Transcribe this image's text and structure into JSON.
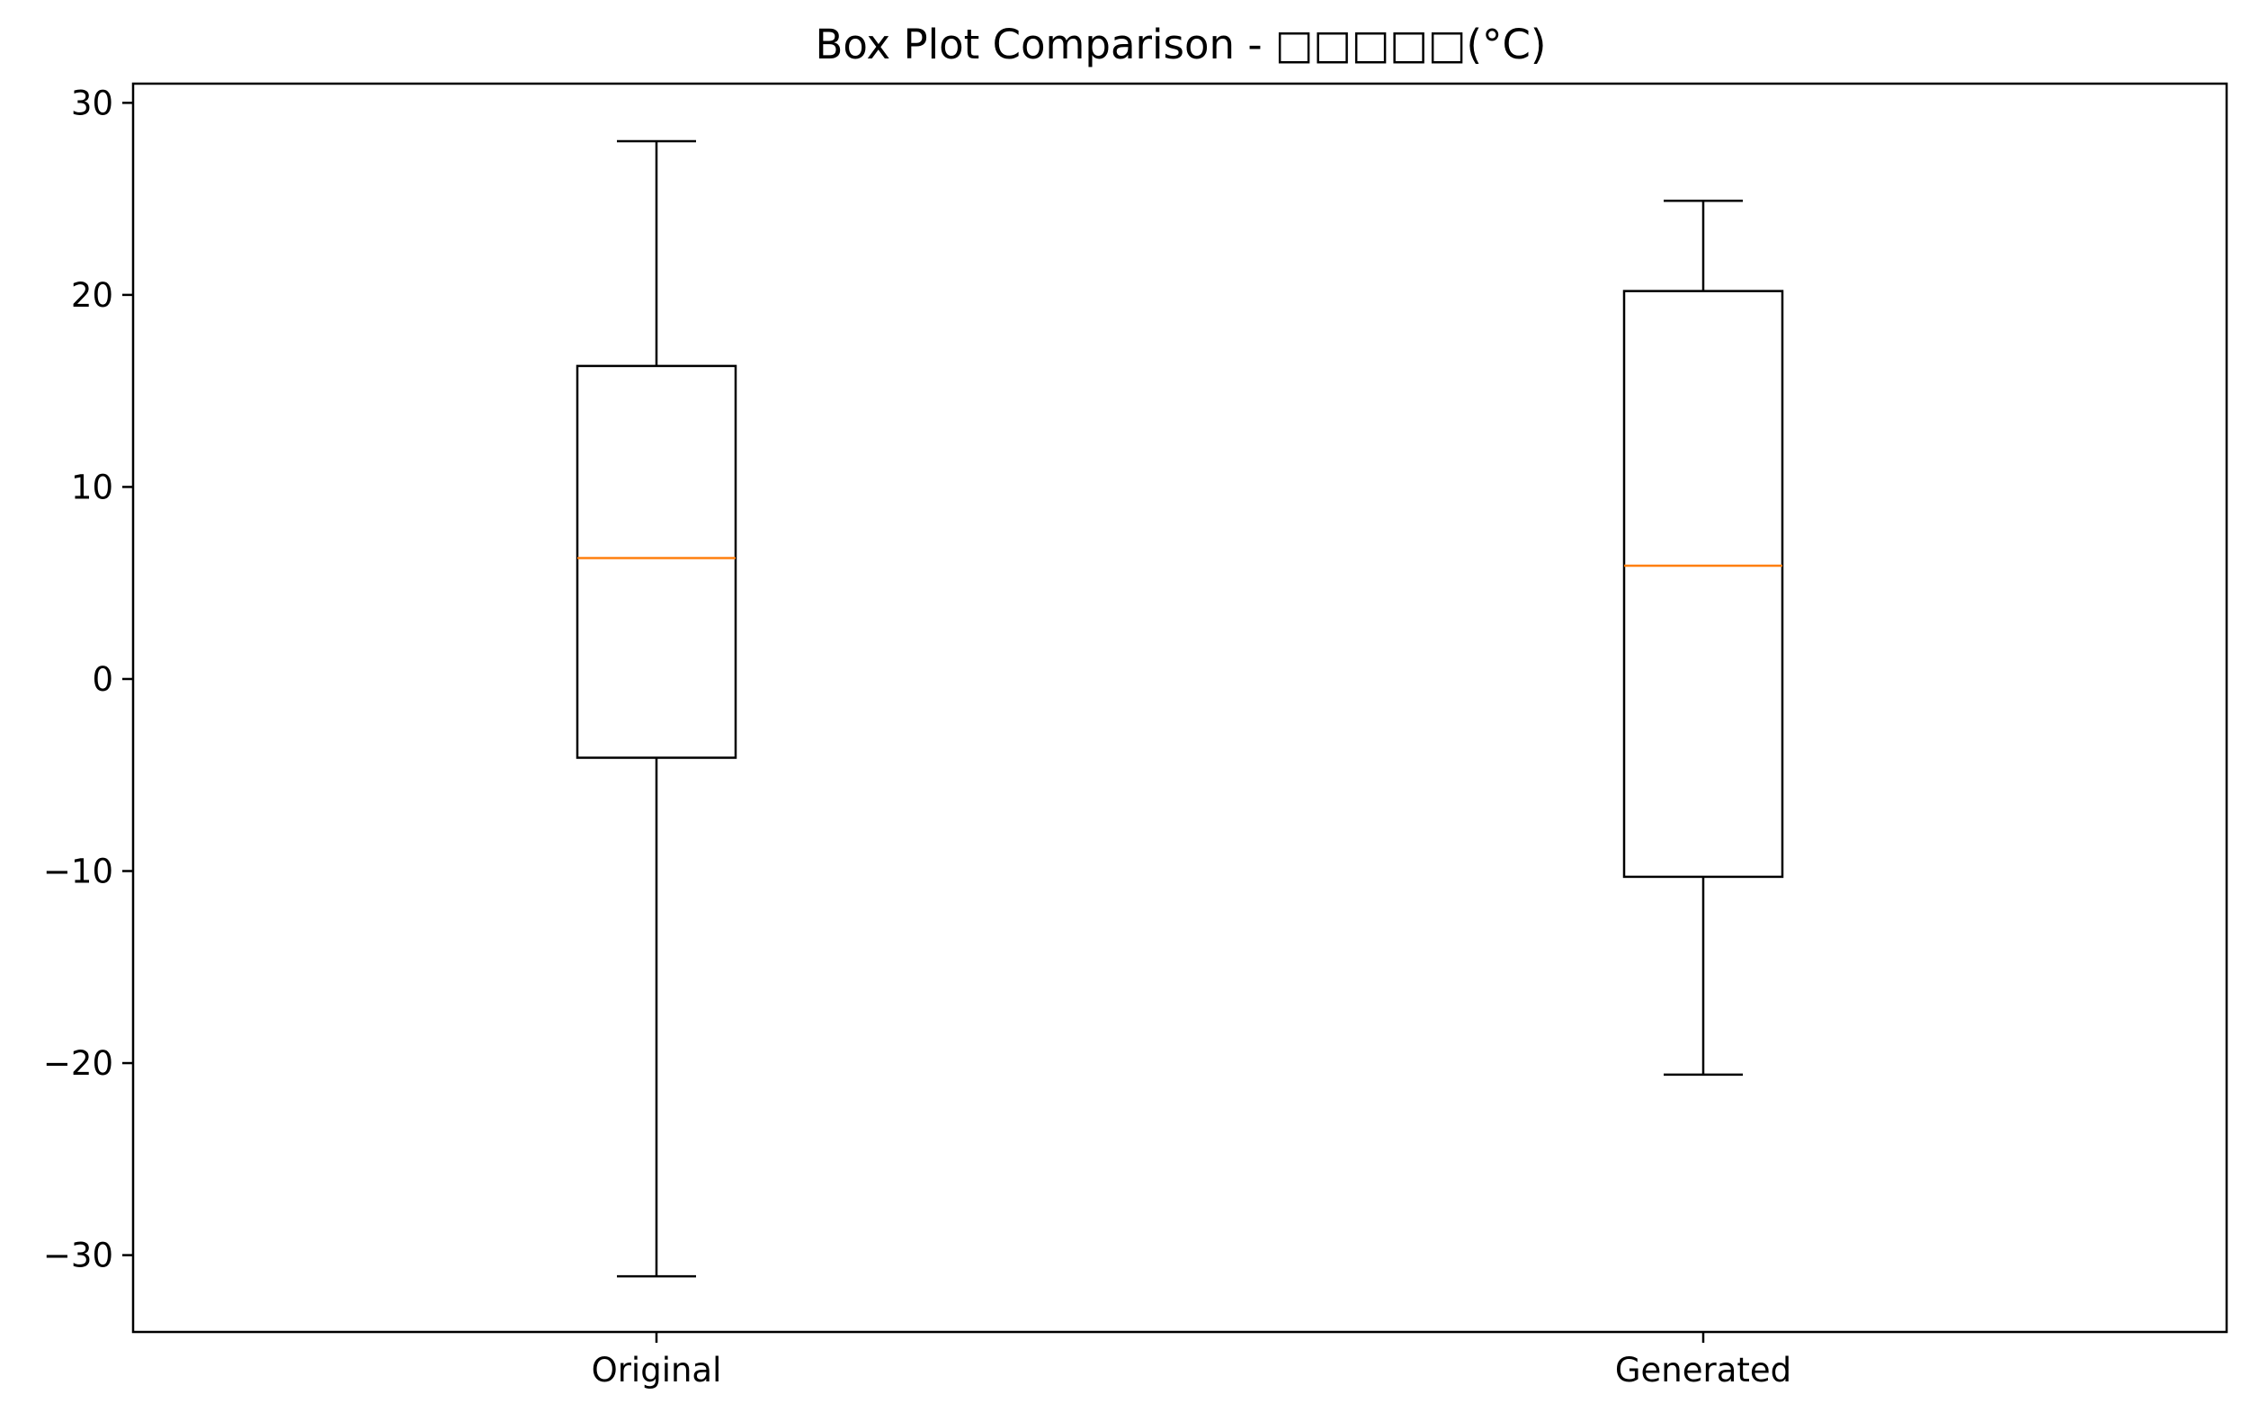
{
  "chart_data": {
    "type": "box",
    "title": "Box Plot Comparison - □□□□□(°C)",
    "xlabel": "",
    "ylabel": "",
    "categories": [
      "Original",
      "Generated"
    ],
    "ylim": [
      -34,
      31
    ],
    "yticks": [
      30,
      20,
      10,
      0,
      -10,
      -20,
      -30
    ],
    "ytick_labels": [
      "30",
      "20",
      "10",
      "0",
      "−10",
      "−20",
      "−30"
    ],
    "boxes": [
      {
        "name": "Original",
        "whisker_low": -31.1,
        "q1": -4.1,
        "median": 6.3,
        "q3": 16.3,
        "whisker_high": 28.0
      },
      {
        "name": "Generated",
        "whisker_low": -20.6,
        "q1": -10.3,
        "median": 5.9,
        "q3": 20.2,
        "whisker_high": 24.9
      }
    ],
    "grid": false,
    "colors": {
      "box": "#000000",
      "median": "#ff7f0e"
    }
  }
}
